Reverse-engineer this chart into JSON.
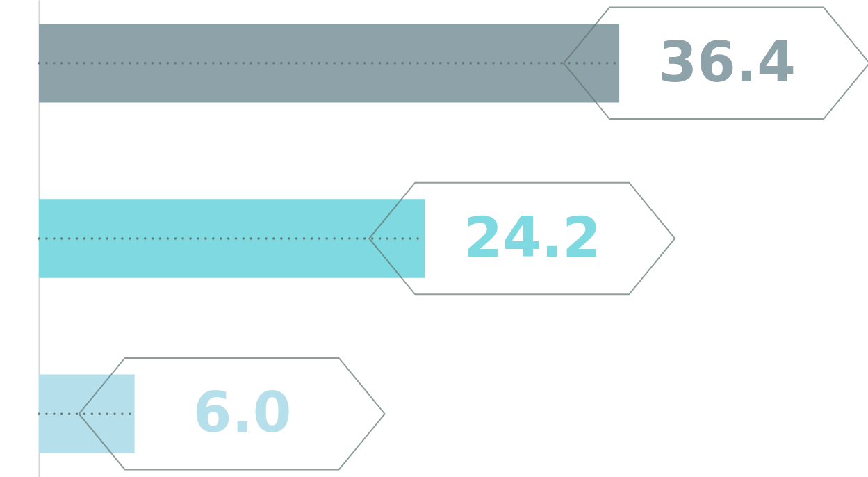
{
  "chart_data": {
    "type": "bar",
    "orientation": "horizontal",
    "categories": [
      null,
      null,
      null
    ],
    "values": [
      36.4,
      24.2,
      6.0
    ],
    "colors": [
      "#8ea2a9",
      "#7fd9e0",
      "#b5dfea"
    ],
    "value_labels": [
      "36.4",
      "24.2",
      "6.0"
    ],
    "xlim": [
      0,
      52
    ],
    "tick_labels": false
  }
}
